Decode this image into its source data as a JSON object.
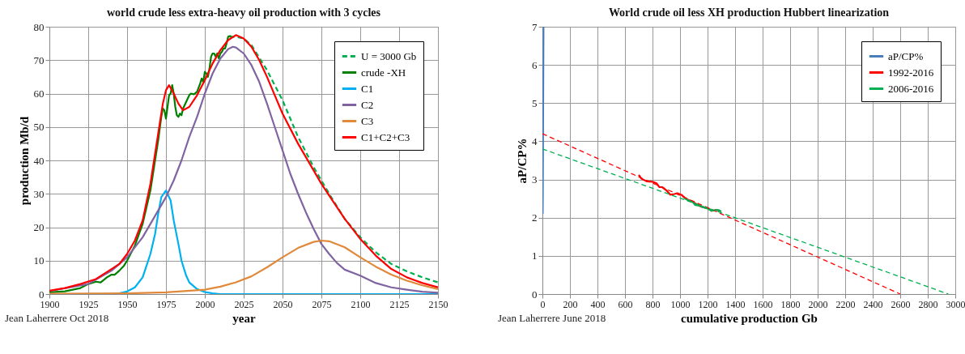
{
  "chart_data": [
    {
      "type": "line",
      "title": "world crude less extra-heavy oil production with 3 cycles",
      "xlabel": "year",
      "ylabel": "production Mb/d",
      "xlim": [
        1900,
        2150
      ],
      "xticks": [
        1900,
        1925,
        1950,
        1975,
        2000,
        2025,
        2050,
        2075,
        2100,
        2125,
        2150
      ],
      "ylim": [
        0,
        80
      ],
      "yticks": [
        0,
        10,
        20,
        30,
        40,
        50,
        60,
        70,
        80
      ],
      "grid": true,
      "legend": "top right",
      "annotations": [
        "Jean Laherrere Oct 2018"
      ],
      "series": [
        {
          "name": "U = 3000 Gb",
          "color": "#00b050",
          "line_style": "dashed",
          "x": [
            2016,
            2020,
            2025,
            2030,
            2040,
            2050,
            2060,
            2070,
            2080,
            2090,
            2100,
            2110,
            2120,
            2130,
            2140,
            2150
          ],
          "values": [
            77,
            77,
            76.5,
            74.5,
            67,
            58,
            47,
            38,
            30,
            22.5,
            17,
            12.5,
            9,
            6.8,
            5,
            3.5
          ]
        },
        {
          "name": "crude -XH",
          "color": "#008000",
          "line_style": "solid",
          "x": [
            1900,
            1910,
            1920,
            1925,
            1930,
            1933,
            1937,
            1940,
            1942,
            1945,
            1948,
            1950,
            1955,
            1960,
            1965,
            1970,
            1972,
            1973,
            1974,
            1975,
            1976,
            1977,
            1978,
            1979,
            1980,
            1981,
            1982,
            1983,
            1984,
            1985,
            1986,
            1988,
            1990,
            1991,
            1993,
            1995,
            1997,
            1998,
            1999,
            2000,
            2001,
            2002,
            2003,
            2004,
            2005,
            2006,
            2007,
            2008,
            2009,
            2010,
            2011,
            2012,
            2013,
            2014,
            2015,
            2016,
            2017
          ],
          "values": [
            0.5,
            0.8,
            1.8,
            3,
            3.7,
            3.5,
            5,
            5.8,
            5.8,
            7,
            8.5,
            10,
            14.5,
            21,
            31,
            46,
            53,
            55.5,
            55,
            52.5,
            56,
            59.5,
            60,
            62.5,
            60,
            56,
            53.5,
            53,
            54,
            53.5,
            55.5,
            57.5,
            59.5,
            60,
            59.8,
            60.5,
            63,
            64.5,
            63.5,
            66.5,
            66,
            65,
            67.5,
            71,
            72,
            72,
            71,
            72,
            70.5,
            72,
            72.5,
            73.5,
            73.5,
            75,
            77,
            77.2,
            77.2
          ]
        },
        {
          "name": "C1",
          "color": "#00b0f0",
          "line_style": "solid",
          "x": [
            1900,
            1940,
            1945,
            1950,
            1955,
            1960,
            1965,
            1968,
            1970,
            1972,
            1975,
            1978,
            1980,
            1983,
            1985,
            1988,
            1990,
            1995,
            2000,
            2005,
            2010,
            2150
          ],
          "values": [
            0,
            0,
            0.2,
            0.8,
            2,
            5,
            12,
            18,
            24,
            29,
            31,
            28,
            22,
            15,
            10,
            5.5,
            3.5,
            1.5,
            0.6,
            0.2,
            0,
            0
          ]
        },
        {
          "name": "C2",
          "color": "#8064a2",
          "line_style": "solid",
          "x": [
            1900,
            1925,
            1940,
            1950,
            1960,
            1970,
            1975,
            1980,
            1985,
            1990,
            1995,
            2000,
            2005,
            2010,
            2015,
            2018,
            2020,
            2025,
            2030,
            2035,
            2040,
            2045,
            2050,
            2055,
            2060,
            2065,
            2070,
            2075,
            2080,
            2085,
            2090,
            2100,
            2110,
            2120,
            2130,
            2140,
            2150
          ],
          "values": [
            0.9,
            3,
            7,
            11,
            17,
            25,
            29,
            34,
            40,
            47,
            53,
            60,
            66,
            70.5,
            73.3,
            74,
            73.8,
            72,
            68.5,
            63.5,
            57,
            50,
            43,
            36,
            30,
            24.5,
            19.5,
            15,
            12,
            9.3,
            7.3,
            5.5,
            3.3,
            2,
            1.3,
            0.7,
            0.4
          ]
        },
        {
          "name": "C3",
          "color": "#e0893a",
          "line_style": "solid",
          "x": [
            1900,
            1950,
            1975,
            2000,
            2010,
            2020,
            2030,
            2040,
            2050,
            2060,
            2070,
            2075,
            2080,
            2090,
            2100,
            2110,
            2120,
            2130,
            2140,
            2150
          ],
          "values": [
            0.1,
            0.2,
            0.5,
            1.3,
            2.2,
            3.5,
            5.3,
            8,
            11,
            13.8,
            15.6,
            16,
            15.8,
            14,
            11,
            8.2,
            5.8,
            4,
            2.6,
            1.5
          ]
        },
        {
          "name": "C1+C2+C3",
          "color": "#ff0000",
          "line_style": "solid",
          "x": [
            1900,
            1910,
            1920,
            1930,
            1940,
            1945,
            1950,
            1955,
            1960,
            1965,
            1970,
            1973,
            1975,
            1977,
            1980,
            1983,
            1986,
            1990,
            1995,
            2000,
            2005,
            2010,
            2015,
            2020,
            2025,
            2030,
            2035,
            2040,
            2045,
            2050,
            2060,
            2070,
            2075,
            2080,
            2090,
            2100,
            2110,
            2120,
            2130,
            2140,
            2150
          ],
          "values": [
            1,
            1.8,
            3,
            4.5,
            7.5,
            9,
            12,
            16,
            22,
            33,
            48,
            57,
            61,
            62.5,
            60,
            57,
            55,
            56,
            59.5,
            64,
            69,
            73,
            76,
            77.5,
            76.5,
            74,
            70,
            65,
            59.5,
            54,
            45,
            37,
            33,
            29.5,
            22.5,
            16.5,
            11.5,
            7.5,
            5,
            3.3,
            2
          ]
        }
      ]
    },
    {
      "type": "line",
      "title": "World crude oil less XH production Hubbert linearization",
      "xlabel": "cumulative production Gb",
      "ylabel": "aP/CP%",
      "xlim": [
        0,
        3000
      ],
      "xticks": [
        0,
        200,
        400,
        600,
        800,
        1000,
        1200,
        1400,
        1600,
        1800,
        2000,
        2200,
        2400,
        2600,
        2800,
        3000
      ],
      "ylim": [
        0,
        7
      ],
      "yticks": [
        0,
        1,
        2,
        3,
        4,
        5,
        6,
        7
      ],
      "grid": true,
      "legend": "top right",
      "annotations": [
        "Jean Laherrere June 2018"
      ],
      "series": [
        {
          "name": "aP/CP%",
          "color": "#4a7ebb",
          "line_style": "solid",
          "x": [
            2,
            3,
            5,
            8
          ],
          "values": [
            2.1,
            2.6,
            4.5,
            7
          ]
        },
        {
          "name": "1992-2016",
          "color": "#ff0000",
          "line_style": "solid",
          "x": [
            700,
            720,
            760,
            800,
            830,
            850,
            870,
            900,
            930,
            960,
            980,
            1010,
            1040,
            1070,
            1100,
            1130,
            1160,
            1200,
            1230,
            1260,
            1290
          ],
          "values": [
            3.12,
            3.02,
            2.95,
            2.94,
            2.9,
            2.8,
            2.8,
            2.72,
            2.6,
            2.62,
            2.64,
            2.6,
            2.5,
            2.45,
            2.4,
            2.33,
            2.28,
            2.25,
            2.18,
            2.2,
            2.18
          ]
        },
        {
          "name": "2006-2016",
          "color": "#00b050",
          "line_style": "solid",
          "x": [
            1030,
            1060,
            1090,
            1110,
            1140,
            1170,
            1200,
            1230,
            1260,
            1280,
            1300
          ],
          "values": [
            2.52,
            2.45,
            2.42,
            2.33,
            2.32,
            2.27,
            2.24,
            2.18,
            2.2,
            2.2,
            2.16
          ]
        },
        {
          "color": "#ff0000",
          "line_style": "dashed",
          "x": [
            0,
            2600
          ],
          "values": [
            4.2,
            0
          ]
        },
        {
          "color": "#00b050",
          "line_style": "dashed",
          "x": [
            0,
            2950
          ],
          "values": [
            3.8,
            0
          ]
        }
      ]
    }
  ]
}
